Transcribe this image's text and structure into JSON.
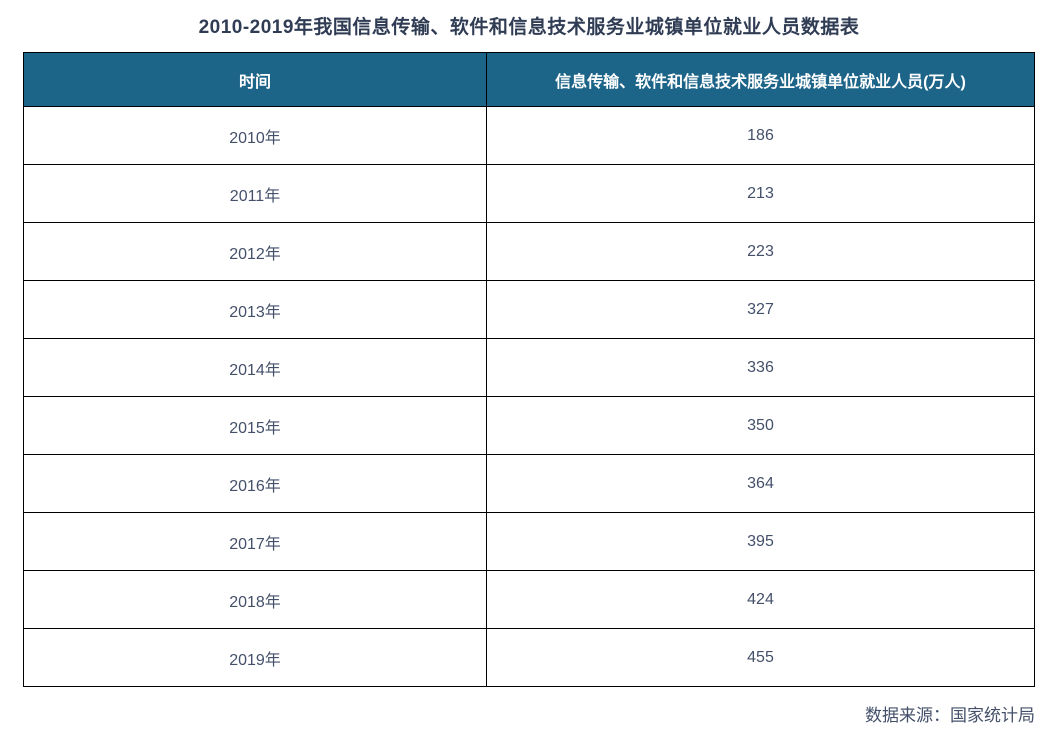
{
  "page": {
    "title": "2010-2019年我国信息传输、软件和信息技术服务业城镇单位就业人员数据表",
    "source_note": "数据来源：国家统计局"
  },
  "table": {
    "columns": [
      "时间",
      "信息传输、软件和信息技术服务业城镇单位就业人员(万人)"
    ],
    "rows": [
      {
        "year": "2010年",
        "value": "186"
      },
      {
        "year": "2011年",
        "value": "213"
      },
      {
        "year": "2012年",
        "value": "223"
      },
      {
        "year": "2013年",
        "value": "327"
      },
      {
        "year": "2014年",
        "value": "336"
      },
      {
        "year": "2015年",
        "value": "350"
      },
      {
        "year": "2016年",
        "value": "364"
      },
      {
        "year": "2017年",
        "value": "395"
      },
      {
        "year": "2018年",
        "value": "424"
      },
      {
        "year": "2019年",
        "value": "455"
      }
    ]
  },
  "colors": {
    "header_bg": "#1d6489",
    "header_text": "#ffffff",
    "title_text": "#2f3c54",
    "cell_text": "#44506a",
    "border": "#000000"
  },
  "chart_data": {
    "type": "table",
    "title": "2010-2019年我国信息传输、软件和信息技术服务业城镇单位就业人员数据表",
    "columns": [
      "时间",
      "信息传输、软件和信息技术服务业城镇单位就业人员(万人)"
    ],
    "categories": [
      "2010年",
      "2011年",
      "2012年",
      "2013年",
      "2014年",
      "2015年",
      "2016年",
      "2017年",
      "2018年",
      "2019年"
    ],
    "values": [
      186,
      213,
      223,
      327,
      336,
      350,
      364,
      395,
      424,
      455
    ],
    "ylabel": "信息传输、软件和信息技术服务业城镇单位就业人员(万人)",
    "xlabel": "时间",
    "source": "数据来源：国家统计局"
  }
}
